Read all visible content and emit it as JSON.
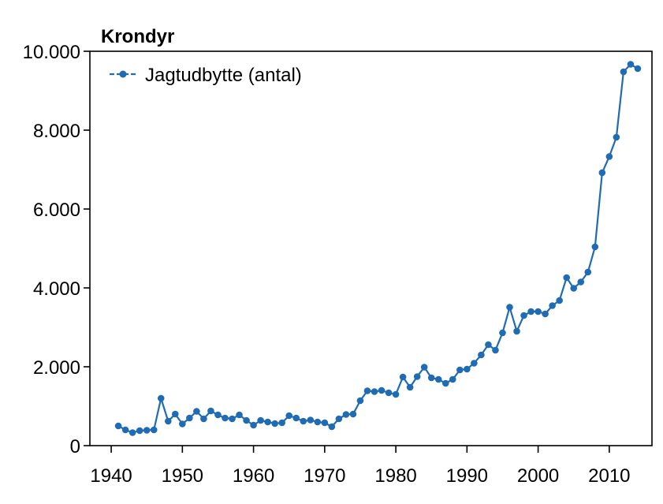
{
  "chart_data": {
    "type": "line",
    "title": "Krondyr",
    "xlabel": "",
    "ylabel": "",
    "xlim": [
      1937,
      2016
    ],
    "ylim": [
      0,
      10000
    ],
    "grid": false,
    "legend_position": "top-left",
    "x_ticks": [
      1940,
      1950,
      1960,
      1970,
      1980,
      1990,
      2000,
      2010
    ],
    "x_tick_labels": [
      "1940",
      "1950",
      "1960",
      "1970",
      "1980",
      "1990",
      "2000",
      "2010"
    ],
    "y_ticks": [
      0,
      2000,
      4000,
      6000,
      8000,
      10000
    ],
    "y_tick_labels": [
      "0",
      "2.000",
      "4.000",
      "6.000",
      "8.000",
      "10.000"
    ],
    "colors": {
      "series": "#1f6bb4",
      "axis": "#000000"
    },
    "series": [
      {
        "name": "Jagtudbytte (antal)",
        "x": [
          1941,
          1942,
          1943,
          1944,
          1945,
          1946,
          1947,
          1948,
          1949,
          1950,
          1951,
          1952,
          1953,
          1954,
          1955,
          1956,
          1957,
          1958,
          1959,
          1960,
          1961,
          1962,
          1963,
          1964,
          1965,
          1966,
          1967,
          1968,
          1969,
          1970,
          1971,
          1972,
          1973,
          1974,
          1975,
          1976,
          1977,
          1978,
          1979,
          1980,
          1981,
          1982,
          1983,
          1984,
          1985,
          1986,
          1987,
          1988,
          1989,
          1990,
          1991,
          1992,
          1993,
          1994,
          1995,
          1996,
          1997,
          1998,
          1999,
          2000,
          2001,
          2002,
          2003,
          2004,
          2005,
          2006,
          2007,
          2008,
          2009,
          2010,
          2011,
          2012,
          2013,
          2014
        ],
        "values": [
          500,
          400,
          330,
          380,
          390,
          400,
          1200,
          620,
          800,
          550,
          700,
          870,
          680,
          880,
          780,
          700,
          680,
          780,
          640,
          520,
          640,
          600,
          560,
          580,
          760,
          700,
          620,
          650,
          600,
          580,
          480,
          680,
          790,
          800,
          1140,
          1390,
          1370,
          1400,
          1340,
          1300,
          1740,
          1480,
          1750,
          1990,
          1720,
          1680,
          1580,
          1680,
          1920,
          1940,
          2090,
          2300,
          2560,
          2420,
          2860,
          3510,
          2900,
          3300,
          3400,
          3400,
          3340,
          3550,
          3680,
          4260,
          3990,
          4150,
          4400,
          5040,
          6920,
          7330,
          7820,
          9480,
          9670,
          9560
        ]
      }
    ]
  }
}
